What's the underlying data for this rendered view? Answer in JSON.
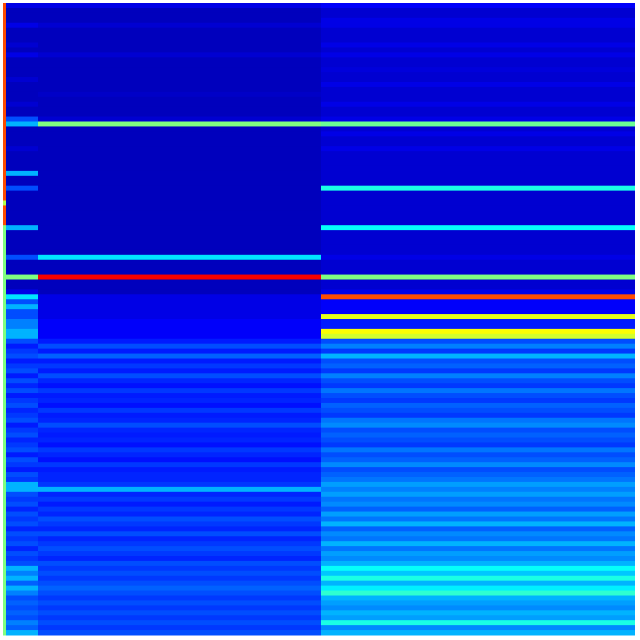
{
  "chart_data": {
    "type": "heatmap",
    "colormap": "jet",
    "zlim": [
      0,
      1
    ],
    "x": [
      null,
      null,
      null,
      null
    ],
    "values": [
      [
        0.8,
        0.1,
        0.1,
        0.12
      ],
      [
        0.8,
        0.06,
        0.06,
        0.08
      ],
      [
        0.8,
        0.06,
        0.06,
        0.08
      ],
      [
        0.8,
        0.06,
        0.06,
        0.1
      ],
      [
        0.8,
        0.1,
        0.08,
        0.1
      ],
      [
        0.8,
        0.06,
        0.06,
        0.08
      ],
      [
        0.8,
        0.06,
        0.06,
        0.08
      ],
      [
        0.8,
        0.06,
        0.06,
        0.08
      ],
      [
        0.8,
        0.08,
        0.06,
        0.1
      ],
      [
        0.8,
        0.06,
        0.06,
        0.08
      ],
      [
        0.8,
        0.1,
        0.08,
        0.1
      ],
      [
        0.8,
        0.06,
        0.06,
        0.08
      ],
      [
        0.8,
        0.06,
        0.06,
        0.08
      ],
      [
        0.8,
        0.06,
        0.06,
        0.09
      ],
      [
        0.8,
        0.06,
        0.06,
        0.08
      ],
      [
        0.8,
        0.08,
        0.06,
        0.08
      ],
      [
        0.8,
        0.06,
        0.06,
        0.1
      ],
      [
        0.8,
        0.06,
        0.06,
        0.08
      ],
      [
        0.8,
        0.06,
        0.07,
        0.08
      ],
      [
        0.8,
        0.06,
        0.06,
        0.08
      ],
      [
        0.8,
        0.08,
        0.06,
        0.1
      ],
      [
        0.8,
        0.06,
        0.06,
        0.08
      ],
      [
        0.8,
        0.06,
        0.06,
        0.08
      ],
      [
        0.8,
        0.2,
        0.08,
        0.1
      ],
      [
        0.8,
        0.3,
        0.5,
        0.48
      ],
      [
        0.8,
        0.06,
        0.06,
        0.08
      ],
      [
        0.8,
        0.06,
        0.06,
        0.1
      ],
      [
        0.8,
        0.06,
        0.06,
        0.08
      ],
      [
        0.8,
        0.06,
        0.06,
        0.08
      ],
      [
        0.8,
        0.08,
        0.06,
        0.1
      ],
      [
        0.8,
        0.06,
        0.06,
        0.08
      ],
      [
        0.8,
        0.06,
        0.06,
        0.08
      ],
      [
        0.8,
        0.06,
        0.06,
        0.08
      ],
      [
        0.8,
        0.06,
        0.06,
        0.08
      ],
      [
        0.8,
        0.3,
        0.06,
        0.08
      ],
      [
        0.8,
        0.06,
        0.06,
        0.08
      ],
      [
        0.8,
        0.06,
        0.06,
        0.08
      ],
      [
        0.8,
        0.2,
        0.06,
        0.4
      ],
      [
        0.8,
        0.06,
        0.06,
        0.08
      ],
      [
        0.8,
        0.06,
        0.06,
        0.08
      ],
      [
        0.55,
        0.06,
        0.06,
        0.08
      ],
      [
        0.8,
        0.06,
        0.06,
        0.08
      ],
      [
        0.8,
        0.06,
        0.06,
        0.08
      ],
      [
        0.8,
        0.06,
        0.06,
        0.08
      ],
      [
        0.8,
        0.06,
        0.06,
        0.08
      ],
      [
        0.5,
        0.3,
        0.06,
        0.38
      ],
      [
        0.5,
        0.06,
        0.06,
        0.08
      ],
      [
        0.5,
        0.06,
        0.06,
        0.08
      ],
      [
        0.5,
        0.06,
        0.06,
        0.08
      ],
      [
        0.5,
        0.06,
        0.06,
        0.08
      ],
      [
        0.5,
        0.06,
        0.06,
        0.08
      ],
      [
        0.5,
        0.2,
        0.35,
        0.1
      ],
      [
        0.5,
        0.06,
        0.06,
        0.08
      ],
      [
        0.5,
        0.06,
        0.06,
        0.08
      ],
      [
        0.5,
        0.06,
        0.06,
        0.08
      ],
      [
        0.5,
        0.5,
        0.88,
        0.5
      ],
      [
        0.5,
        0.06,
        0.06,
        0.08
      ],
      [
        0.5,
        0.06,
        0.06,
        0.08
      ],
      [
        0.5,
        0.1,
        0.06,
        0.1
      ],
      [
        0.5,
        0.35,
        0.1,
        0.8
      ],
      [
        0.5,
        0.2,
        0.1,
        0.12
      ],
      [
        0.5,
        0.3,
        0.1,
        0.12
      ],
      [
        0.5,
        0.2,
        0.1,
        0.12
      ],
      [
        0.5,
        0.2,
        0.1,
        0.6
      ],
      [
        0.5,
        0.25,
        0.12,
        0.15
      ],
      [
        0.5,
        0.25,
        0.12,
        0.15
      ],
      [
        0.5,
        0.3,
        0.12,
        0.62
      ],
      [
        0.5,
        0.3,
        0.12,
        0.58
      ],
      [
        0.5,
        0.2,
        0.15,
        0.2
      ],
      [
        0.5,
        0.15,
        0.2,
        0.25
      ],
      [
        0.5,
        0.18,
        0.15,
        0.18
      ],
      [
        0.5,
        0.2,
        0.22,
        0.3
      ],
      [
        0.5,
        0.15,
        0.15,
        0.2
      ],
      [
        0.5,
        0.18,
        0.18,
        0.22
      ],
      [
        0.5,
        0.2,
        0.15,
        0.18
      ],
      [
        0.5,
        0.15,
        0.2,
        0.25
      ],
      [
        0.5,
        0.2,
        0.16,
        0.2
      ],
      [
        0.5,
        0.16,
        0.14,
        0.18
      ],
      [
        0.5,
        0.2,
        0.18,
        0.24
      ],
      [
        0.5,
        0.15,
        0.15,
        0.2
      ],
      [
        0.5,
        0.18,
        0.16,
        0.18
      ],
      [
        0.5,
        0.2,
        0.14,
        0.22
      ],
      [
        0.5,
        0.16,
        0.18,
        0.2
      ],
      [
        0.5,
        0.18,
        0.15,
        0.18
      ],
      [
        0.5,
        0.2,
        0.16,
        0.24
      ],
      [
        0.5,
        0.15,
        0.2,
        0.26
      ],
      [
        0.5,
        0.18,
        0.16,
        0.2
      ],
      [
        0.5,
        0.2,
        0.15,
        0.22
      ],
      [
        0.5,
        0.16,
        0.16,
        0.2
      ],
      [
        0.5,
        0.18,
        0.14,
        0.18
      ],
      [
        0.5,
        0.2,
        0.18,
        0.24
      ],
      [
        0.5,
        0.15,
        0.16,
        0.2
      ],
      [
        0.5,
        0.2,
        0.14,
        0.22
      ],
      [
        0.5,
        0.18,
        0.18,
        0.26
      ],
      [
        0.5,
        0.15,
        0.15,
        0.2
      ],
      [
        0.5,
        0.2,
        0.16,
        0.22
      ],
      [
        0.5,
        0.18,
        0.16,
        0.24
      ],
      [
        0.5,
        0.3,
        0.18,
        0.28
      ],
      [
        0.5,
        0.3,
        0.3,
        0.25
      ],
      [
        0.5,
        0.2,
        0.16,
        0.28
      ],
      [
        0.5,
        0.18,
        0.18,
        0.24
      ],
      [
        0.5,
        0.2,
        0.15,
        0.26
      ],
      [
        0.5,
        0.16,
        0.18,
        0.22
      ],
      [
        0.5,
        0.2,
        0.16,
        0.28
      ],
      [
        0.5,
        0.18,
        0.2,
        0.24
      ],
      [
        0.5,
        0.2,
        0.18,
        0.3
      ],
      [
        0.5,
        0.16,
        0.16,
        0.22
      ],
      [
        0.5,
        0.2,
        0.2,
        0.26
      ],
      [
        0.5,
        0.18,
        0.16,
        0.24
      ],
      [
        0.5,
        0.2,
        0.18,
        0.3
      ],
      [
        0.5,
        0.16,
        0.2,
        0.24
      ],
      [
        0.5,
        0.2,
        0.18,
        0.28
      ],
      [
        0.5,
        0.18,
        0.16,
        0.26
      ],
      [
        0.5,
        0.2,
        0.2,
        0.3
      ],
      [
        0.5,
        0.3,
        0.18,
        0.38
      ],
      [
        0.5,
        0.25,
        0.2,
        0.32
      ],
      [
        0.5,
        0.3,
        0.18,
        0.4
      ],
      [
        0.5,
        0.22,
        0.2,
        0.3
      ],
      [
        0.5,
        0.3,
        0.22,
        0.36
      ],
      [
        0.5,
        0.25,
        0.2,
        0.42
      ],
      [
        0.5,
        0.2,
        0.18,
        0.3
      ],
      [
        0.5,
        0.22,
        0.2,
        0.28
      ],
      [
        0.5,
        0.2,
        0.18,
        0.26
      ],
      [
        0.5,
        0.22,
        0.2,
        0.3
      ],
      [
        0.5,
        0.2,
        0.18,
        0.28
      ],
      [
        0.5,
        0.25,
        0.2,
        0.4
      ],
      [
        0.5,
        0.22,
        0.18,
        0.26
      ],
      [
        0.5,
        0.3,
        0.2,
        0.3
      ]
    ]
  }
}
